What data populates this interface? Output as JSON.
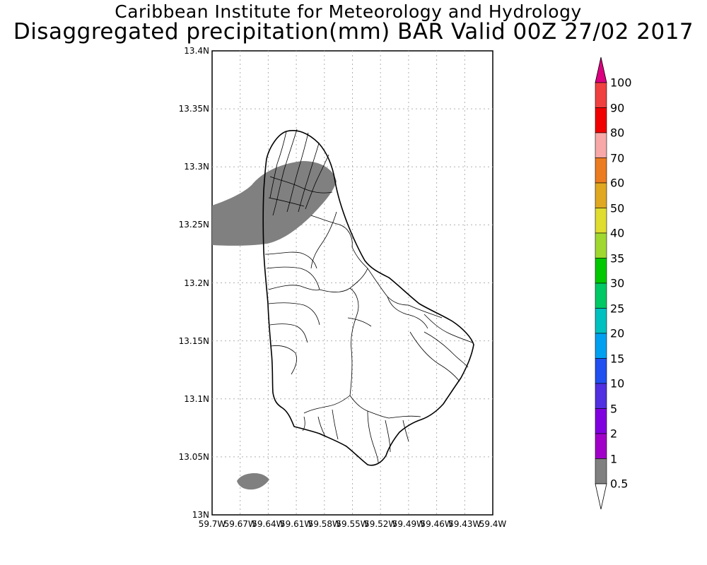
{
  "title": {
    "line1": "Caribbean Institute for Meteorology and Hydrology",
    "line2": "Disaggregated precipitation(mm) BAR Valid 00Z 27/02 2017"
  },
  "map": {
    "region": "Barbados",
    "lat_ticks": [
      "13.4N",
      "13.35N",
      "13.3N",
      "13.25N",
      "13.2N",
      "13.15N",
      "13.1N",
      "13.05N",
      "13N"
    ],
    "lon_ticks": [
      "59.7W",
      "59.67W",
      "59.64W",
      "59.61W",
      "59.58W",
      "59.55W",
      "59.52W",
      "59.49W",
      "59.46W",
      "59.43W",
      "59.4W"
    ],
    "lat_range": [
      13.0,
      13.4
    ],
    "lon_range": [
      -59.7,
      -59.4
    ],
    "grid": true,
    "precip_areas": [
      {
        "name": "north-west band",
        "class": "0.5-1 mm",
        "color": "#808080"
      },
      {
        "name": "south-west blob",
        "class": "0.5-1 mm",
        "color": "#808080"
      }
    ]
  },
  "colorbar": {
    "labels": [
      "100",
      "90",
      "80",
      "70",
      "60",
      "50",
      "40",
      "35",
      "30",
      "25",
      "20",
      "15",
      "10",
      "5",
      "2",
      "1",
      "0.5"
    ],
    "colors": [
      "#dc0080",
      "#f04040",
      "#f00000",
      "#f8a8a8",
      "#ec7c20",
      "#e0a820",
      "#e0dc30",
      "#a0d830",
      "#00c800",
      "#00c864",
      "#00c0c0",
      "#00a0f0",
      "#2050f0",
      "#5030e0",
      "#8000e0",
      "#a000c8",
      "#808080",
      "#ffffff"
    ]
  }
}
